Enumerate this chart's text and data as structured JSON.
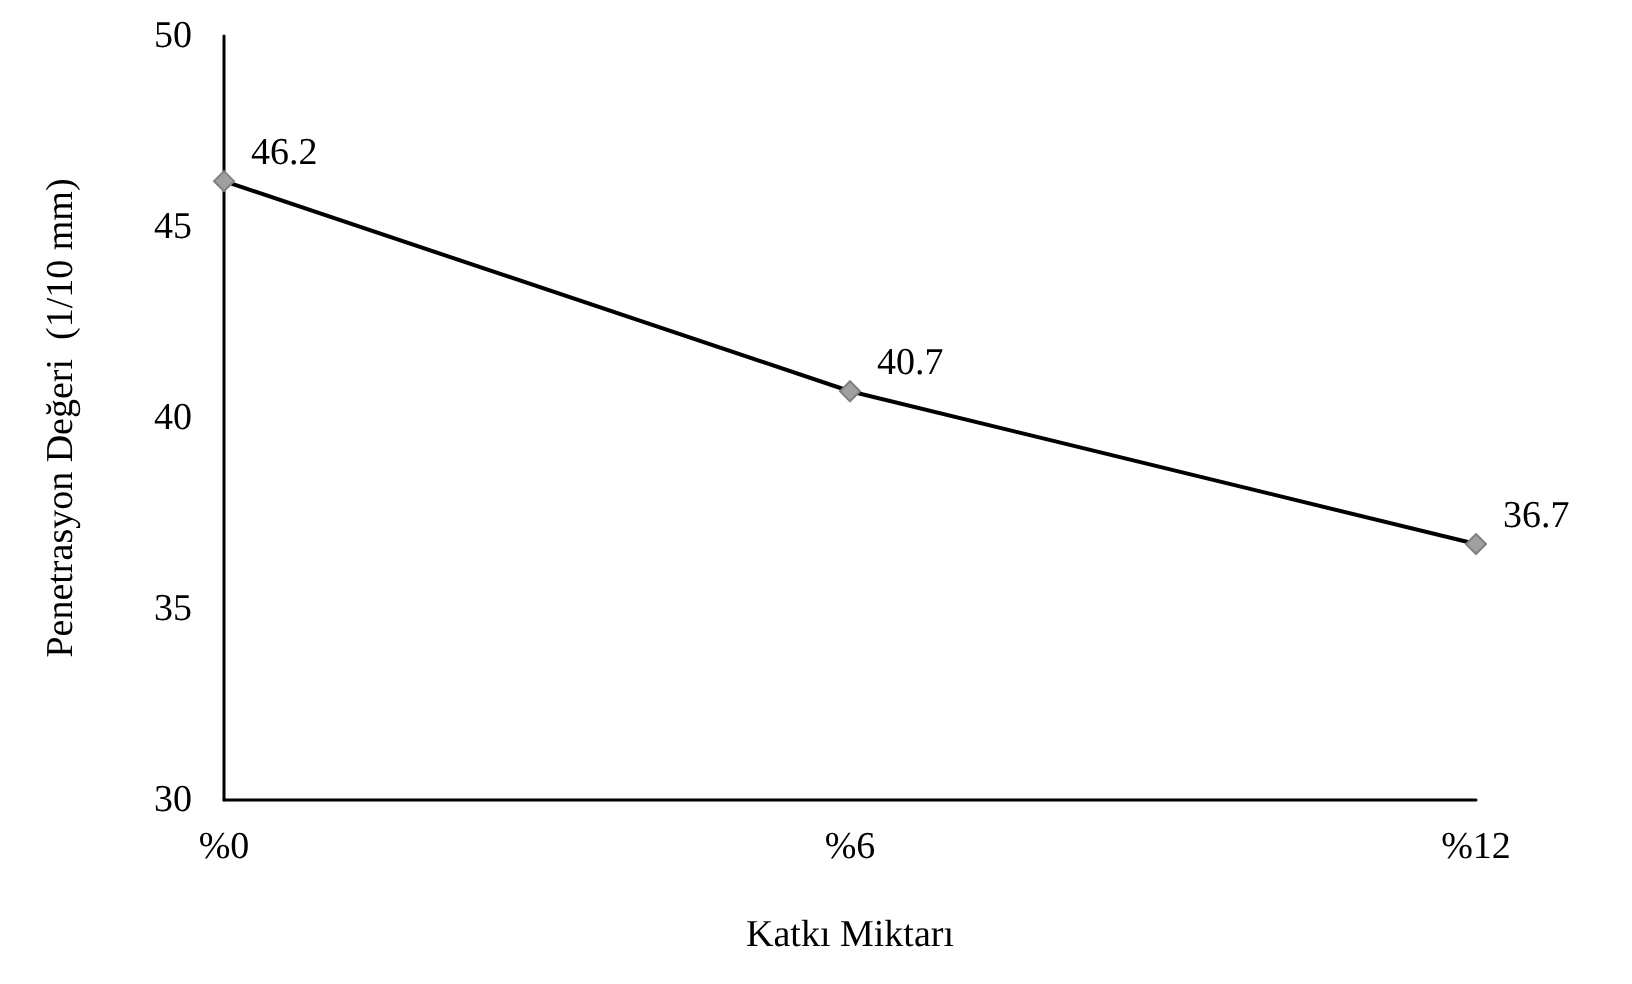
{
  "chart_data": {
    "type": "line",
    "xlabel": "Katkı Miktarı",
    "ylabel": "Penetrasyon Değeri  (1/10 mm)",
    "categories": [
      "%0",
      "%6",
      "%12"
    ],
    "series": [
      {
        "color": "#000000",
        "values": [
          46.2,
          40.7,
          36.7
        ]
      }
    ],
    "ylim": [
      30,
      50
    ],
    "yticks": [
      30,
      35,
      40,
      45,
      50
    ],
    "grid": false,
    "marker": "diamond",
    "line_style": "solid",
    "data_labels": true
  }
}
